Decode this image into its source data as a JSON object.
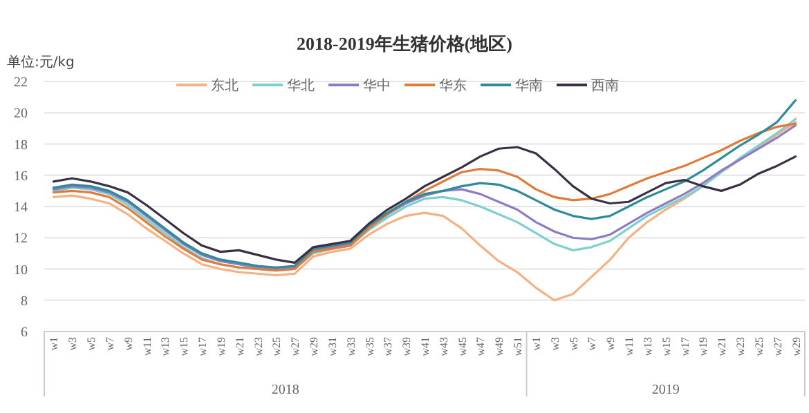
{
  "chart_data": {
    "type": "line",
    "title": "2018-2019年生猪价格(地区)",
    "ylabel": "单位:元/kg",
    "categories": [
      "w1",
      "w3",
      "w5",
      "w7",
      "w9",
      "w11",
      "w13",
      "w15",
      "w17",
      "w19",
      "w21",
      "w23",
      "w25",
      "w27",
      "w29",
      "w31",
      "w33",
      "w35",
      "w37",
      "w39",
      "w41",
      "w43",
      "w45",
      "w47",
      "w49",
      "w51",
      "w1",
      "w3",
      "w5",
      "w7",
      "w9",
      "w11",
      "w13",
      "w15",
      "w17",
      "w19",
      "w21",
      "w23",
      "w25",
      "w27",
      "w29"
    ],
    "ylim": [
      6,
      22
    ],
    "yticks": [
      6,
      8,
      10,
      12,
      14,
      16,
      18,
      20,
      22
    ],
    "grid": "y",
    "legend": "top",
    "marker": "none",
    "line_style": "solid",
    "annotations": [
      "2018",
      "2019"
    ],
    "series": [
      {
        "name": "东北",
        "color": "#f4b183",
        "values": [
          14.6,
          14.7,
          14.5,
          14.2,
          13.5,
          12.6,
          11.8,
          11.0,
          10.3,
          10.0,
          9.8,
          9.7,
          9.6,
          9.7,
          10.8,
          11.1,
          11.3,
          12.2,
          12.9,
          13.4,
          13.6,
          13.4,
          12.6,
          11.5,
          10.5,
          9.8,
          8.8,
          8.0,
          8.4,
          9.5,
          10.6,
          12.0,
          13.0,
          13.8,
          14.5,
          15.3,
          16.2,
          17.0,
          17.8,
          18.6,
          19.4
        ]
      },
      {
        "name": "华北",
        "color": "#7fcfd0",
        "values": [
          15.0,
          15.2,
          15.1,
          14.8,
          14.1,
          13.2,
          12.3,
          11.4,
          10.7,
          10.3,
          10.1,
          10.0,
          9.9,
          10.0,
          11.0,
          11.3,
          11.5,
          12.5,
          13.3,
          14.0,
          14.5,
          14.6,
          14.4,
          14.0,
          13.5,
          13.0,
          12.3,
          11.6,
          11.2,
          11.4,
          11.8,
          12.6,
          13.4,
          14.0,
          14.6,
          15.3,
          16.2,
          17.1,
          17.9,
          18.7,
          19.6
        ]
      },
      {
        "name": "华中",
        "color": "#8e7cc3",
        "values": [
          15.1,
          15.3,
          15.2,
          14.9,
          14.3,
          13.4,
          12.5,
          11.6,
          10.9,
          10.5,
          10.3,
          10.1,
          10.0,
          10.1,
          11.2,
          11.4,
          11.6,
          12.7,
          13.5,
          14.2,
          14.7,
          15.0,
          15.1,
          14.8,
          14.3,
          13.8,
          13.0,
          12.4,
          12.0,
          11.9,
          12.2,
          12.9,
          13.6,
          14.2,
          14.8,
          15.5,
          16.3,
          17.0,
          17.7,
          18.4,
          19.2
        ]
      },
      {
        "name": "华东",
        "color": "#e07b39",
        "values": [
          14.9,
          15.0,
          14.9,
          14.6,
          13.9,
          13.0,
          12.1,
          11.3,
          10.6,
          10.3,
          10.1,
          10.0,
          9.9,
          10.0,
          11.1,
          11.3,
          11.5,
          12.6,
          13.5,
          14.3,
          15.0,
          15.6,
          16.2,
          16.4,
          16.3,
          15.9,
          15.1,
          14.6,
          14.4,
          14.5,
          14.8,
          15.3,
          15.8,
          16.2,
          16.6,
          17.1,
          17.6,
          18.2,
          18.7,
          19.1,
          19.3
        ]
      },
      {
        "name": "华南",
        "color": "#2e8b9a",
        "values": [
          15.2,
          15.4,
          15.3,
          15.0,
          14.4,
          13.5,
          12.6,
          11.7,
          11.0,
          10.6,
          10.4,
          10.2,
          10.1,
          10.2,
          11.3,
          11.5,
          11.7,
          12.8,
          13.6,
          14.3,
          14.8,
          15.0,
          15.3,
          15.5,
          15.4,
          15.0,
          14.4,
          13.8,
          13.4,
          13.2,
          13.4,
          14.0,
          14.6,
          15.1,
          15.6,
          16.3,
          17.1,
          17.9,
          18.6,
          19.4,
          20.8
        ]
      },
      {
        "name": "西南",
        "color": "#3a2f45",
        "values": [
          15.6,
          15.8,
          15.6,
          15.3,
          14.9,
          14.1,
          13.2,
          12.3,
          11.5,
          11.1,
          11.2,
          10.9,
          10.6,
          10.4,
          11.4,
          11.6,
          11.8,
          12.9,
          13.8,
          14.5,
          15.3,
          15.9,
          16.5,
          17.2,
          17.7,
          17.8,
          17.4,
          16.4,
          15.3,
          14.5,
          14.2,
          14.3,
          14.9,
          15.5,
          15.7,
          15.3,
          15.0,
          15.4,
          16.1,
          16.6,
          17.2
        ]
      }
    ]
  }
}
